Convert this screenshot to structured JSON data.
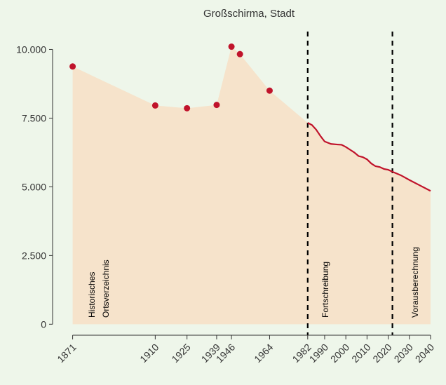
{
  "chart_data": {
    "type": "area",
    "title": "Großschirma, Stadt",
    "series": [
      {
        "style": "points",
        "color": "#c0132b",
        "x": [
          1871,
          1910,
          1925,
          1939,
          1946,
          1950,
          1964
        ],
        "values": [
          9380,
          7960,
          7860,
          7980,
          10100,
          9830,
          8500
        ]
      },
      {
        "style": "line",
        "color": "#c0132b",
        "x": [
          1982,
          1984,
          1986,
          1988,
          1990,
          1993,
          1996,
          1998,
          2000,
          2002,
          2004,
          2006,
          2008,
          2010,
          2012,
          2014,
          2016,
          2018,
          2020,
          2022,
          2026,
          2030,
          2035,
          2040
        ],
        "values": [
          7330,
          7250,
          7080,
          6850,
          6650,
          6560,
          6540,
          6530,
          6450,
          6350,
          6250,
          6120,
          6080,
          6000,
          5850,
          5750,
          5720,
          5650,
          5620,
          5550,
          5420,
          5250,
          5050,
          4850
        ]
      }
    ],
    "area_color": "#f6e3cb",
    "vlines": [
      1982,
      2022
    ],
    "annotations": [
      "Historisches",
      "Ortsverzeichnis",
      "Fortschreibung",
      "Vorausberechnung"
    ],
    "xlim": [
      1866.5,
      2042
    ],
    "xticks": [
      1871,
      1910,
      1925,
      1939,
      1946,
      1964,
      1982,
      1990,
      2000,
      2010,
      2020,
      2030,
      2040
    ],
    "ylim": [
      -400,
      10650
    ],
    "yticks": [
      0,
      {
        "value": 2500,
        "label": "2.500"
      },
      {
        "value": 5000,
        "label": "5.000"
      },
      {
        "value": 7500,
        "label": "7.500"
      },
      {
        "value": 10000,
        "label": "10.000"
      }
    ]
  }
}
